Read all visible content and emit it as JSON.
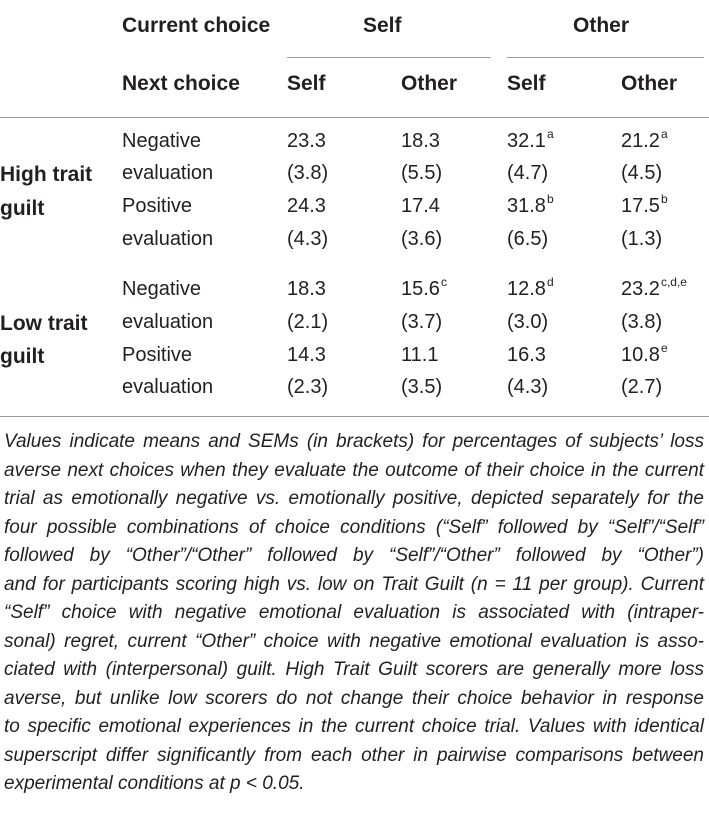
{
  "header": {
    "current_choice": "Current choice",
    "next_choice": "Next choice",
    "self": "Self",
    "other": "Other",
    "sub_cols": [
      "Self",
      "Other",
      "Self",
      "Other"
    ]
  },
  "groups": [
    {
      "label_lines": [
        "High trait",
        "guilt"
      ],
      "rows": [
        {
          "label_lines": [
            "Negative",
            "evaluation"
          ],
          "means": [
            "23.3",
            "18.3",
            "32.1",
            "21.2"
          ],
          "sups": [
            "",
            "",
            "a",
            "a"
          ],
          "sems": [
            "(3.8)",
            "(5.5)",
            "(4.7)",
            "(4.5)"
          ]
        },
        {
          "label_lines": [
            "Positive",
            "evaluation"
          ],
          "means": [
            "24.3",
            "17.4",
            "31.8",
            "17.5"
          ],
          "sups": [
            "",
            "",
            "b",
            "b"
          ],
          "sems": [
            "(4.3)",
            "(3.6)",
            "(6.5)",
            "(1.3)"
          ]
        }
      ]
    },
    {
      "label_lines": [
        "Low trait",
        "guilt"
      ],
      "rows": [
        {
          "label_lines": [
            "Negative",
            "evaluation"
          ],
          "means": [
            "18.3",
            "15.6",
            "12.8",
            "23.2"
          ],
          "sups": [
            "",
            "c",
            "d",
            "c,d,e"
          ],
          "sems": [
            "(2.1)",
            "(3.7)",
            "(3.0)",
            "(3.8)"
          ]
        },
        {
          "label_lines": [
            "Positive",
            "evaluation"
          ],
          "means": [
            "14.3",
            "11.1",
            "16.3",
            "10.8"
          ],
          "sups": [
            "",
            "",
            "",
            "e"
          ],
          "sems": [
            "(2.3)",
            "(3.5)",
            "(4.3)",
            "(2.7)"
          ]
        }
      ]
    }
  ],
  "footnote_lines": [
    "Values indicate means and SEMs (in brackets) for percentages of subjects’ loss",
    "averse next choices when they evaluate the outcome of their choice in the current",
    "trial as emotionally negative vs. emotionally positive, depicted separately for the",
    "four possible combinations of choice conditions (“Self” followed by “Self”/“Self”",
    "followed by “Other”/“Other” followed by “Self”/“Other” followed by “Other”)",
    "and for participants scoring high vs. low on Trait Guilt (n = 11 per group). Current",
    "“Self” choice with negative emotional evaluation is associated with (intraper-",
    "sonal) regret, current “Other” choice with negative emotional evaluation is asso-",
    "ciated with (interpersonal) guilt. High Trait Guilt scorers are generally more loss",
    "averse, but unlike low scorers do not change their choice behavior in response",
    "to specific emotional experiences in the current choice trial. Values with identical",
    "superscript differ significantly from each other in pairwise comparisons between",
    "experimental conditions at p < 0.05."
  ]
}
